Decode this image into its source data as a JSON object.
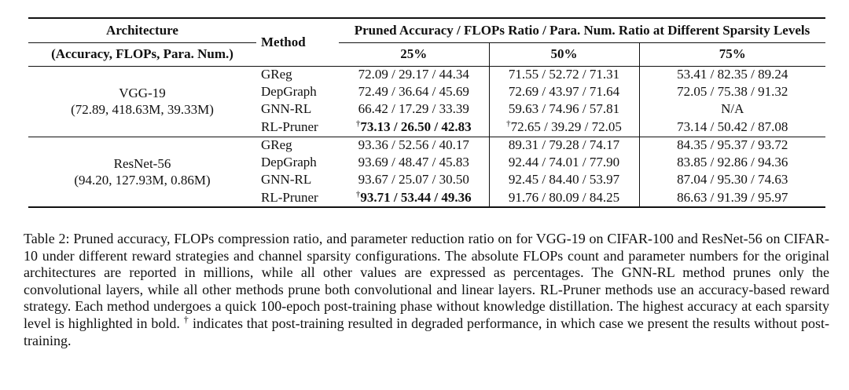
{
  "table": {
    "header": {
      "architecture": "Architecture",
      "architecture_sub": "(Accuracy, FLOPs, Para. Num.)",
      "method": "Method",
      "group": "Pruned Accuracy / FLOPs Ratio / Para. Num. Ratio at Different Sparsity Levels",
      "levels": [
        "25%",
        "50%",
        "75%"
      ]
    },
    "groups": [
      {
        "arch_name": "VGG-19",
        "arch_stats": "(72.89, 418.63M, 39.33M)",
        "rows": [
          {
            "method": "GReg",
            "c25": "72.09 / 29.17 / 44.34",
            "c50": "71.55 / 52.72 / 71.31",
            "c75": "53.41 / 82.35 / 89.24"
          },
          {
            "method": "DepGraph",
            "c25": "72.49 / 36.64 / 45.69",
            "c50": "72.69 / 43.97 / 71.64",
            "c75": "72.05 / 75.38 / 91.32"
          },
          {
            "method": "GNN-RL",
            "c25": "66.42 / 17.29 / 33.39",
            "c50": "59.63 / 74.96 / 57.81",
            "c75": "N/A"
          },
          {
            "method": "RL-Pruner",
            "c25": "73.13 / 26.50 / 42.83",
            "c50": "72.65 / 39.29 / 72.05",
            "c75": "73.14 / 50.42 / 87.08"
          }
        ]
      },
      {
        "arch_name": "ResNet-56",
        "arch_stats": "(94.20, 127.93M, 0.86M)",
        "rows": [
          {
            "method": "GReg",
            "c25": "93.36 / 52.56 / 40.17",
            "c50": "89.31 / 79.28 / 74.17",
            "c75": "84.35 / 95.37 / 93.72"
          },
          {
            "method": "DepGraph",
            "c25": "93.69 / 48.47 / 45.83",
            "c50": "92.44 / 74.01 / 77.90",
            "c75": "83.85 / 92.86 / 94.36"
          },
          {
            "method": "GNN-RL",
            "c25": "93.67 / 25.07 / 30.50",
            "c50": "92.45 / 84.40 / 53.97",
            "c75": "87.04 / 95.30 / 74.63"
          },
          {
            "method": "RL-Pruner",
            "c25": "93.71 / 53.44 / 49.36",
            "c50": "91.76 / 80.09 / 84.25",
            "c75": "86.63 / 91.39 / 95.97"
          }
        ]
      }
    ],
    "dagger": "†"
  },
  "caption": {
    "part1": "Table 2: Pruned accuracy, FLOPs compression ratio, and parameter reduction ratio on for VGG-19 on CIFAR-100 and ResNet-56 on CIFAR-10 under different reward strategies and channel sparsity configurations. The absolute FLOPs count and parameter numbers for the original architectures are reported in millions, while all other values are expressed as percentages. The GNN-RL method prunes only the convolutional layers, while all other methods prune both convolutional and linear layers. RL-Pruner methods use an accuracy-based reward strategy. Each method undergoes a quick 100-epoch post-training phase without knowledge distillation. The highest accuracy at each sparsity level is highlighted in bold.",
    "part2": "indicates that post-training resulted in degraded performance, in which case we present the results without post-training."
  }
}
